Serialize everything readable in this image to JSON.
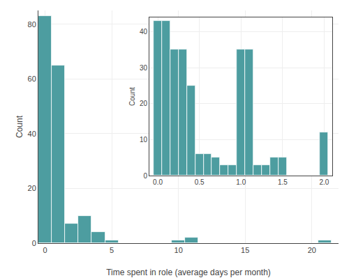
{
  "chart_data": [
    {
      "type": "bar",
      "x": [
        0,
        1,
        2,
        3,
        4,
        5,
        10,
        11,
        21
      ],
      "values": [
        83,
        65,
        7,
        10,
        4,
        1,
        1,
        2,
        1
      ],
      "color": "#4d9da0",
      "xlabel": "Time spent in role (average days per month)",
      "ylabel": "Count",
      "xlim": [
        -0.5,
        22
      ],
      "ylim": [
        0,
        85
      ],
      "xticks": [
        0,
        5,
        10,
        15,
        20
      ],
      "yticks": [
        0,
        20,
        40,
        60,
        80
      ],
      "grid": true
    },
    {
      "type": "bar",
      "x": [
        0.0,
        0.1,
        0.2,
        0.3,
        0.4,
        0.5,
        0.6,
        0.7,
        0.8,
        0.9,
        1.0,
        1.1,
        1.2,
        1.3,
        1.4,
        1.5,
        1.6,
        1.7,
        1.8,
        1.9,
        2.0
      ],
      "values": [
        43,
        43,
        35,
        35,
        25,
        6,
        6,
        5,
        3,
        3,
        35,
        35,
        3,
        3,
        5,
        5,
        0,
        0,
        0,
        0,
        12
      ],
      "color": "#4d9da0",
      "ylabel": "Count",
      "xlim": [
        -0.1,
        2.1
      ],
      "ylim": [
        0,
        44
      ],
      "xticks": [
        {
          "value": 0,
          "label": "0.0"
        },
        0.5,
        {
          "value": 1,
          "label": "1.0"
        },
        1.5,
        {
          "value": 2,
          "label": "2.0"
        }
      ],
      "yticks": [
        0,
        10,
        20,
        30,
        40
      ],
      "grid": true
    }
  ]
}
